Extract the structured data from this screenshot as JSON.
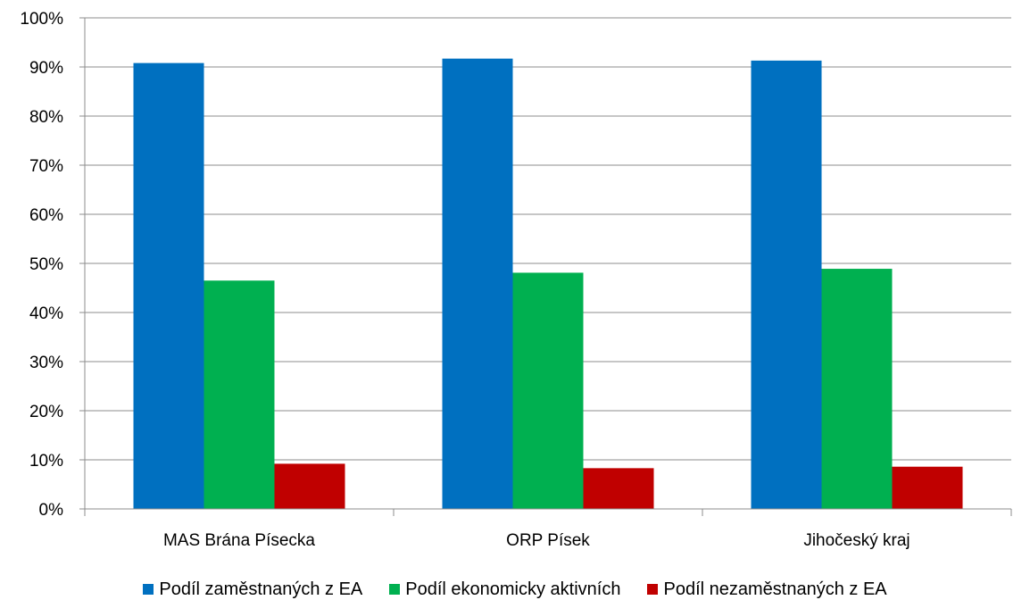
{
  "chart_data": {
    "type": "bar",
    "categories": [
      "MAS Brána Písecka",
      "ORP Písek",
      "Jihočeský kraj"
    ],
    "series": [
      {
        "name": "Podíl zaměstnaných z EA",
        "color": "#0070c0",
        "values": [
          90.8,
          91.7,
          91.3
        ]
      },
      {
        "name": "Podíl ekonomicky aktivních",
        "color": "#00b050",
        "values": [
          46.5,
          48.1,
          48.9
        ]
      },
      {
        "name": "Podíl nezaměstnaných z EA",
        "color": "#c00000",
        "values": [
          9.2,
          8.3,
          8.6
        ]
      }
    ],
    "ylim": [
      0,
      100
    ],
    "yticks": [
      "0%",
      "10%",
      "20%",
      "30%",
      "40%",
      "50%",
      "60%",
      "70%",
      "80%",
      "90%",
      "100%"
    ],
    "grid": true,
    "legend_position": "bottom"
  }
}
